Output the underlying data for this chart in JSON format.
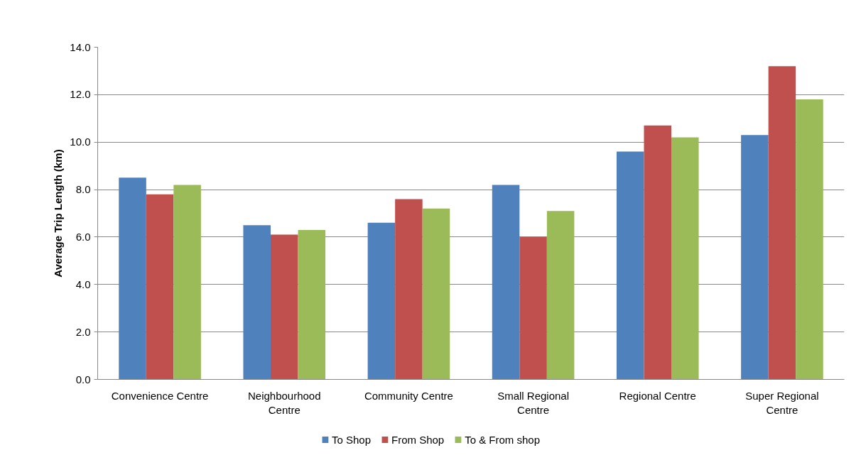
{
  "chart_data": {
    "type": "bar",
    "ylabel": "Average Trip Length (km)",
    "categories": [
      "Convenience Centre",
      "Neighbourhood Centre",
      "Community Centre",
      "Small Regional Centre",
      "Regional Centre",
      "Super Regional Centre"
    ],
    "series": [
      {
        "name": "To Shop",
        "color": "#4f81bd",
        "values": [
          8.5,
          6.5,
          6.6,
          8.2,
          9.6,
          10.3
        ]
      },
      {
        "name": "From Shop",
        "color": "#c0504d",
        "values": [
          7.8,
          6.1,
          7.6,
          6.0,
          10.7,
          13.2
        ]
      },
      {
        "name": "To & From shop",
        "color": "#9bbb59",
        "values": [
          8.2,
          6.3,
          7.2,
          7.1,
          10.2,
          11.8
        ]
      }
    ],
    "ylim": [
      0,
      14
    ],
    "yticks": [
      {
        "value": 0,
        "label": "0.0"
      },
      {
        "value": 2,
        "label": "2.0"
      },
      {
        "value": 4,
        "label": "4.0"
      },
      {
        "value": 6,
        "label": "6.0"
      },
      {
        "value": 8,
        "label": "8.0"
      },
      {
        "value": 10,
        "label": "10.0"
      },
      {
        "value": 12,
        "label": "12.0"
      },
      {
        "value": 14,
        "label": "14.0"
      }
    ],
    "grid": "y",
    "legend": "bottom"
  }
}
